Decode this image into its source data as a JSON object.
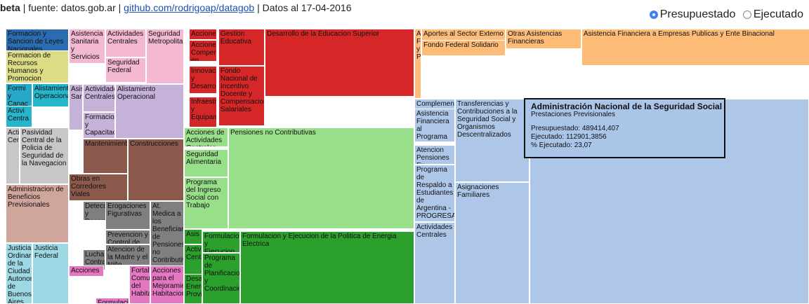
{
  "header": {
    "beta": "beta",
    "source_text": "| fuente: datos.gob.ar |",
    "github_link": "github.com/rodrigoap/datagob",
    "date_text": "| Datos al 17-04-2016"
  },
  "view_options": {
    "selected": "presupuestado",
    "presupuestado_label": "Presupuestado",
    "ejecutado_label": "Ejecutado"
  },
  "treemap": {
    "cells": [
      {
        "label": "Formacion y Sancion de Leyes Nacionales",
        "color": "#2b6cb0"
      },
      {
        "label": "Formacion de Recursos Humanos y Promocion",
        "color": "#dddc86"
      },
      {
        "label": "Formi y Canac",
        "color": "#26a9c9"
      },
      {
        "label": "Alistamiento Operacional",
        "color": "#26b6cc"
      },
      {
        "label": "Activi Centra",
        "color": "#26b6cc"
      },
      {
        "label": "Activi Centra",
        "color": "#c7c7c7"
      },
      {
        "label": "Pasividad Central de la Policia de Seguridad de la Navegacion",
        "color": "#c7c7c7"
      },
      {
        "label": "Administracion de Beneficios Previsionales",
        "color": "#d0a59b"
      },
      {
        "label": "Justicia Ordinaria de la Ciudad Autonoma de Buenos Aires",
        "color": "#9dd9e5"
      },
      {
        "label": "Justicia Federal",
        "color": "#9dd9e5"
      },
      {
        "label": "Asistencia Sanitaria y Servicios",
        "color": "#f5b8d3"
      },
      {
        "label": "Actividades Centrales",
        "color": "#f5b8d3"
      },
      {
        "label": "Seguridad Federal",
        "color": "#f5b8d3"
      },
      {
        "label": "Seguridad Metropolitana",
        "color": "#f5b8d3"
      },
      {
        "label": "Asistencia Sanitaria",
        "color": "#c6b1d8"
      },
      {
        "label": "Actividades Centrales",
        "color": "#c6b1d8"
      },
      {
        "label": "Alistamiento Operacional",
        "color": "#c6b1d8"
      },
      {
        "label": "Formacion y Capacitacion",
        "color": "#c6b1d8"
      },
      {
        "label": "Mantenimiento",
        "color": "#8b5a4c"
      },
      {
        "label": "Construcciones",
        "color": "#8b5a4c"
      },
      {
        "label": "Obras en Corredores Viales",
        "color": "#8b5a4c"
      },
      {
        "label": "Deteccion y Desarrollo",
        "color": "#7f7f7f"
      },
      {
        "label": "Erogaciones Figurativas",
        "color": "#7f7f7f"
      },
      {
        "label": "At. Medica a los Beneficiarios de Pensiones no Contributivas",
        "color": "#7f7f7f"
      },
      {
        "label": "Prevencion y Control de Enfermedades",
        "color": "#7f7f7f"
      },
      {
        "label": "Atencion de la Madre y el Niño",
        "color": "#7f7f7f"
      },
      {
        "label": "Lucha Contra",
        "color": "#7f7f7f"
      },
      {
        "label": "Acciones",
        "color": "#e377c2"
      },
      {
        "label": "Fortalecimiento Comunitario del Habitat",
        "color": "#e377c2"
      },
      {
        "label": "Acciones para el Mejoramiento Habitacional",
        "color": "#e377c2"
      },
      {
        "label": "Formulacion y Desarrollo de",
        "color": "#e377c2"
      },
      {
        "label": "Acciones",
        "color": "#d62728"
      },
      {
        "label": "Gestion Educativa",
        "color": "#d62728"
      },
      {
        "label": "Desarrollo de la Educacion Superior",
        "color": "#d62728"
      },
      {
        "label": "Acciones Compensatorias en",
        "color": "#d62728"
      },
      {
        "label": "Innovacion y Desarrollo",
        "color": "#d62728"
      },
      {
        "label": "Fondo Nacional de Incentivo Docente y Compensaciones Salariales",
        "color": "#d62728"
      },
      {
        "label": "Infraestructura y Equipamiento",
        "color": "#d62728"
      },
      {
        "label": "Acciones de Actividades Centrales",
        "color": "#98df8a"
      },
      {
        "label": "Pensiones no Contributivas",
        "color": "#98df8a"
      },
      {
        "label": "Seguridad Alimentaria",
        "color": "#98df8a"
      },
      {
        "label": "Programa del Ingreso Social con Trabajo",
        "color": "#98df8a"
      },
      {
        "label": "Asis",
        "color": "#2ca02c"
      },
      {
        "label": "Formulacion y Ejecucion de Politica",
        "color": "#2ca02c"
      },
      {
        "label": "Formulacion y Ejecucion de la Politica de Energia Electrica",
        "color": "#2ca02c"
      },
      {
        "label": "Activi Centr",
        "color": "#2ca02c"
      },
      {
        "label": "Desarrollo Energetico Provincial",
        "color": "#2ca02c"
      },
      {
        "label": "Programa de Planificacion y Coordinacion",
        "color": "#2ca02c"
      },
      {
        "label": "Aportes al Sector Externo",
        "color": "#ffbb78"
      },
      {
        "label": "Otras Asistencias Financieras",
        "color": "#ffbb78"
      },
      {
        "label": "Asistencia Financiera a Empresas Publicas y Ente Binacional",
        "color": "#ffbb78"
      },
      {
        "label": "Fondo Federal Solidario",
        "color": "#ffbb78"
      },
      {
        "label": "Asistencia Financiera y Programas",
        "color": "#ffbb78"
      },
      {
        "label": "Complementos",
        "color": "#aec7e8"
      },
      {
        "label": "Transferencias y Contribuciones a la Seguridad Social y Organismos Descentralizados",
        "color": "#aec7e8"
      },
      {
        "label": "Asistencia Financiera al Programa",
        "color": "#aec7e8"
      },
      {
        "label": "Atencion Pensiones Ex-Combatientes y Regimen",
        "color": "#aec7e8"
      },
      {
        "label": "Asignaciones Familiares",
        "color": "#aec7e8"
      },
      {
        "label": "Programa de Respaldo a Estudiantes de Argentina - PROGRESAR",
        "color": "#aec7e8"
      },
      {
        "label": "Actividades Centrales",
        "color": "#aec7e8"
      },
      {
        "label": "Prestaciones Previsionales",
        "color": "#aec7e8"
      }
    ]
  },
  "tooltip": {
    "title": "Administración Nacional de la Seguridad Social",
    "subtitle": "Prestaciones Previsionales",
    "presupuestado": "Presupuestado: 489414,407",
    "ejecutado": "Ejecutado: 112901,3856",
    "pct": "% Ejecutado: 23,07"
  }
}
